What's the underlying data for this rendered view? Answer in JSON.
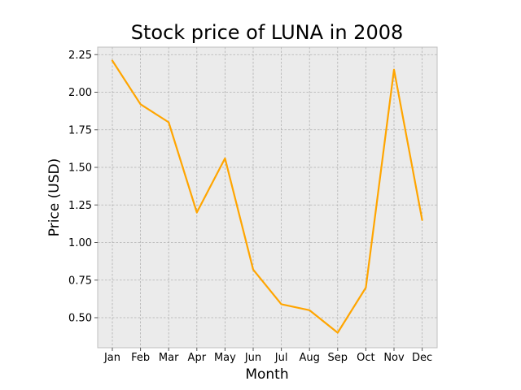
{
  "chart_data": {
    "type": "line",
    "title": "Stock price of LUNA in 2008",
    "xlabel": "Month",
    "ylabel": "Price (USD)",
    "categories": [
      "Jan",
      "Feb",
      "Mar",
      "Apr",
      "May",
      "Jun",
      "Jul",
      "Aug",
      "Sep",
      "Oct",
      "Nov",
      "Dec"
    ],
    "series": [
      {
        "values": [
          2.21,
          1.92,
          1.8,
          1.2,
          1.56,
          0.82,
          0.59,
          0.55,
          0.4,
          0.7,
          2.15,
          1.15
        ],
        "color": "#FFA500"
      }
    ],
    "ylim": [
      0.3,
      2.3
    ],
    "yticks": [
      0.5,
      0.75,
      1.0,
      1.25,
      1.5,
      1.75,
      2.0,
      2.25
    ],
    "ytick_labels": [
      "0.50",
      "0.75",
      "1.00",
      "1.25",
      "1.50",
      "1.75",
      "2.00",
      "2.25"
    ],
    "grid": true,
    "grid_style": "dashed",
    "plot_background": "#EBEBEB",
    "grid_color": "#B0B0B0",
    "spine_color": "#BFBFBF"
  }
}
